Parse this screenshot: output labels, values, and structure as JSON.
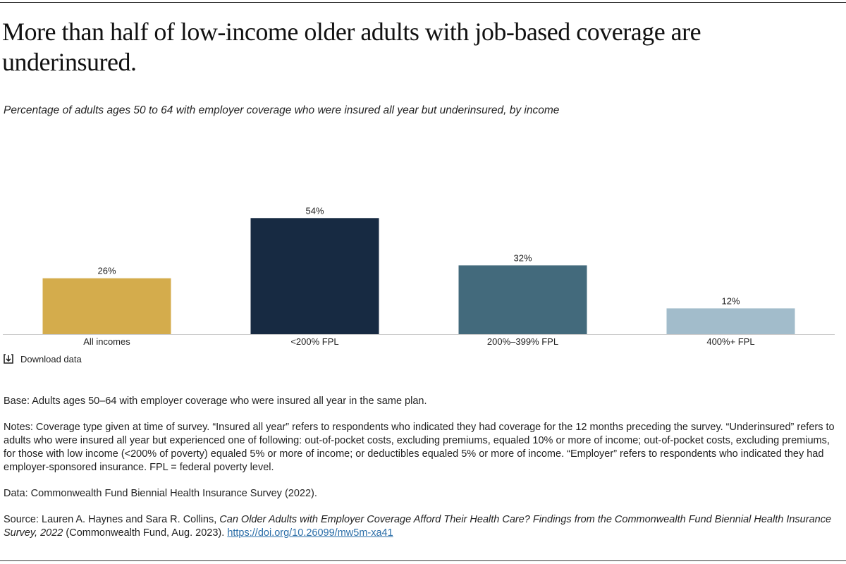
{
  "chart_data": {
    "type": "bar",
    "title": "More than half of low-income older adults with job-based coverage are underinsured.",
    "subtitle": "Percentage of adults ages 50 to 64 with employer coverage who were insured all year but underinsured, by income",
    "categories": [
      "All incomes",
      "<200% FPL",
      "200%–399% FPL",
      "400%+ FPL"
    ],
    "values": [
      26,
      54,
      32,
      12
    ],
    "value_labels": [
      "26%",
      "54%",
      "32%",
      "12%"
    ],
    "colors": [
      "#d4ac4c",
      "#172a42",
      "#436a7c",
      "#a2bccb"
    ],
    "download": "Download data",
    "base": "Base: Adults ages 50–64 with employer coverage who were insured all year in the same plan.",
    "notes": "Notes: Coverage type given at time of survey. “Insured all year” refers to respondents who indicated they had coverage for the 12 months preceding the survey. “Underinsured” refers to adults who were insured all year but experienced one of following: out-of-pocket costs, excluding premiums, equaled 10% or more of income; out-of-pocket costs, excluding premiums, for those with low income (<200% of poverty) equaled 5% or more of income; or deductibles equaled 5% or more of income. “Employer” refers to respondents who indicated they had employer-sponsored insurance. FPL = federal poverty level.",
    "data_source": "Data: Commonwealth Fund Biennial Health Insurance Survey (2022).",
    "source": {
      "prefix": "Source: Lauren A. Haynes and Sara R. Collins, ",
      "title": "Can Older Adults with Employer Coverage Afford Their Health Care? Findings from the Commonwealth Fund Biennial Health Insurance Survey, 2022",
      "suffix": " (Commonwealth Fund, Aug. 2023). ",
      "link": "https://doi.org/10.26099/mw5m-xa41"
    }
  }
}
